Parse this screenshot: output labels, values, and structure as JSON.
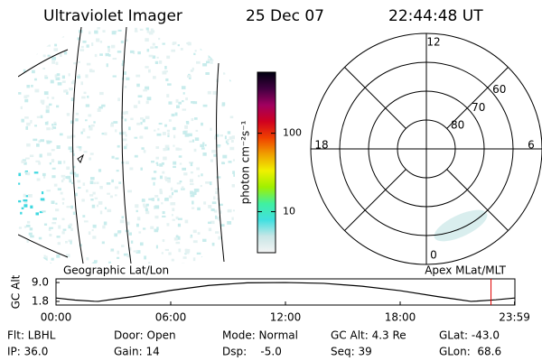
{
  "header": {
    "title": "Ultraviolet Imager",
    "date": "25 Dec 07",
    "time": "22:44:48 UT"
  },
  "chart_data": [
    {
      "type": "colorbar",
      "label": "photon cm⁻²s⁻¹",
      "log_scale": true,
      "ylim": [
        3,
        600
      ],
      "yticks": [
        10,
        100
      ],
      "colors": [
        "#f4f4f4",
        "#c8e6e6",
        "#40e0e0",
        "#40f0a0",
        "#a0f000",
        "#f0f000",
        "#f0a000",
        "#f04000",
        "#d00020",
        "#a00060",
        "#400040",
        "#000010"
      ]
    },
    {
      "type": "polar",
      "rlim": [
        90,
        50
      ],
      "rticks": [
        60,
        70,
        80
      ],
      "thetaticks": [
        {
          "value": 12,
          "label": "12"
        },
        {
          "value": 18,
          "label": "18"
        },
        {
          "value": 6,
          "label": "6"
        },
        {
          "value": 0,
          "label": "0"
        }
      ]
    },
    {
      "type": "line",
      "ylabel": "GC Alt",
      "left_label": "Geographic Lat/Lon",
      "right_label": "Apex MLat/MLT",
      "x": [
        0,
        1,
        2,
        2.2,
        4,
        6,
        8,
        10,
        12,
        14,
        16,
        18,
        20,
        21.7,
        22,
        23,
        24
      ],
      "values": [
        3.1,
        2.3,
        1.85,
        1.8,
        3.6,
        6.0,
        7.9,
        8.9,
        9.0,
        8.7,
        7.6,
        5.9,
        3.6,
        1.8,
        1.9,
        2.4,
        3.1
      ],
      "color": "#000000",
      "marker": 22.75,
      "marker_color": "#e00000",
      "xlim": [
        0,
        24
      ],
      "ylim": [
        0.4,
        10.4
      ],
      "xticks": [
        {
          "value": 0,
          "label": "00:00"
        },
        {
          "value": 6,
          "label": "06:00"
        },
        {
          "value": 12,
          "label": "12:00"
        },
        {
          "value": 18,
          "label": "18:00"
        },
        {
          "value": 23.98,
          "label": "23:59"
        }
      ],
      "yticks": [
        {
          "value": 9,
          "label": "9.0"
        },
        {
          "value": 1.8,
          "label": "1.8"
        }
      ]
    }
  ],
  "footer": {
    "rows": [
      [
        "Flt: LBHL",
        "Door: Open",
        "Mode: Normal",
        "GC Alt: 4.3 Re",
        "GLat: -43.0"
      ],
      [
        "IP: 36.0",
        "Gain: 14",
        "Dsp:    -5.0",
        "Seq: 39",
        "GLon:  68.6"
      ]
    ]
  }
}
